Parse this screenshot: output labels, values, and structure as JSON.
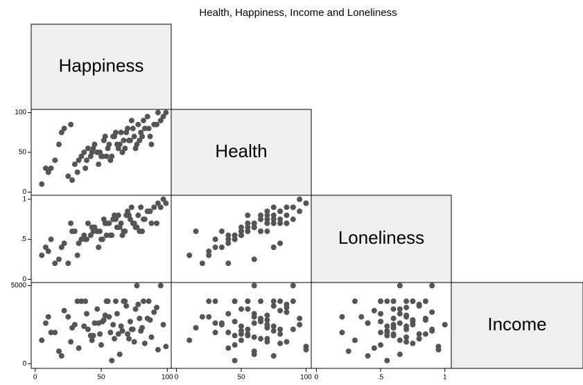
{
  "chart_data": {
    "type": "scatter_matrix",
    "title": "Health, Happiness, Income and Loneliness",
    "color": "#555555",
    "variables": [
      {
        "name": "Happiness",
        "lim": [
          -3,
          103
        ],
        "ticks": [
          0,
          50,
          100
        ],
        "values": [
          5,
          12,
          20,
          25,
          30,
          33,
          38,
          40,
          42,
          45,
          47,
          50,
          52,
          55,
          57,
          60,
          62,
          65,
          68,
          70,
          72,
          75,
          78,
          80,
          82,
          85,
          88,
          90,
          93,
          97,
          10,
          18,
          28,
          35,
          43,
          48,
          53,
          58,
          63,
          67,
          73,
          77,
          83,
          87,
          92,
          99,
          15,
          22,
          32,
          37,
          44,
          51,
          56,
          61,
          66,
          71,
          76,
          81,
          86,
          95,
          8,
          27,
          39,
          49,
          54,
          59,
          64,
          69,
          74,
          79
        ]
      },
      {
        "name": "Health",
        "lim": [
          -4,
          104
        ],
        "ticks": [
          0,
          50,
          100
        ],
        "values": [
          10,
          30,
          75,
          20,
          35,
          40,
          30,
          55,
          45,
          60,
          50,
          45,
          65,
          55,
          40,
          70,
          60,
          75,
          55,
          80,
          65,
          70,
          85,
          75,
          90,
          95,
          60,
          85,
          100,
          95,
          25,
          60,
          15,
          45,
          50,
          35,
          70,
          45,
          55,
          65,
          90,
          60,
          80,
          70,
          85,
          100,
          40,
          80,
          25,
          50,
          55,
          45,
          60,
          75,
          50,
          65,
          55,
          70,
          80,
          90,
          30,
          85,
          40,
          50,
          45,
          70,
          60,
          75,
          80,
          65
        ]
      },
      {
        "name": "Loneliness",
        "lim": [
          -0.04,
          1.05
        ],
        "ticks": [
          0,
          {
            "value": 0.5,
            "label": ".5"
          },
          1
        ],
        "values": [
          0.3,
          0.5,
          0.4,
          0.2,
          0.6,
          0.45,
          0.5,
          0.7,
          0.55,
          0.65,
          0.6,
          0.5,
          0.75,
          0.7,
          0.55,
          0.8,
          0.65,
          0.7,
          0.6,
          0.85,
          0.75,
          0.7,
          0.8,
          0.9,
          0.75,
          0.85,
          0.7,
          0.9,
          0.95,
          1,
          0.35,
          0.25,
          0.6,
          0.5,
          0.65,
          0.4,
          0.7,
          0.55,
          0.8,
          0.6,
          0.9,
          0.65,
          0.75,
          0.85,
          0.7,
          0.95,
          0.2,
          0.45,
          0.3,
          0.55,
          0.6,
          0.5,
          0.7,
          0.75,
          0.55,
          0.8,
          0.65,
          0.6,
          0.85,
          0.9,
          0.4,
          0.7,
          0.5,
          0.6,
          0.55,
          0.75,
          0.65,
          0.8,
          0.7,
          0.6
        ]
      },
      {
        "name": "Income",
        "lim": [
          -300,
          5200
        ],
        "ticks": [
          0,
          5000
        ],
        "values": [
          1500,
          2000,
          500,
          3000,
          2500,
          1000,
          4000,
          2200,
          1800,
          2600,
          3500,
          1200,
          2800,
          4000,
          2000,
          1600,
          3200,
          2400,
          4000,
          1900,
          2700,
          1400,
          3800,
          2100,
          4000,
          2900,
          1700,
          3300,
          900,
          2500,
          3000,
          800,
          2300,
          4000,
          1500,
          2600,
          3100,
          200,
          1900,
          4000,
          2200,
          5000,
          1300,
          2800,
          3600,
          1100,
          2000,
          3400,
          4000,
          2400,
          1800,
          2700,
          3000,
          4000,
          2100,
          1600,
          3500,
          2300,
          4000,
          5000,
          2600,
          1400,
          3200,
          1900,
          4000,
          2500,
          600,
          3700,
          2200,
          2900
        ]
      }
    ]
  }
}
